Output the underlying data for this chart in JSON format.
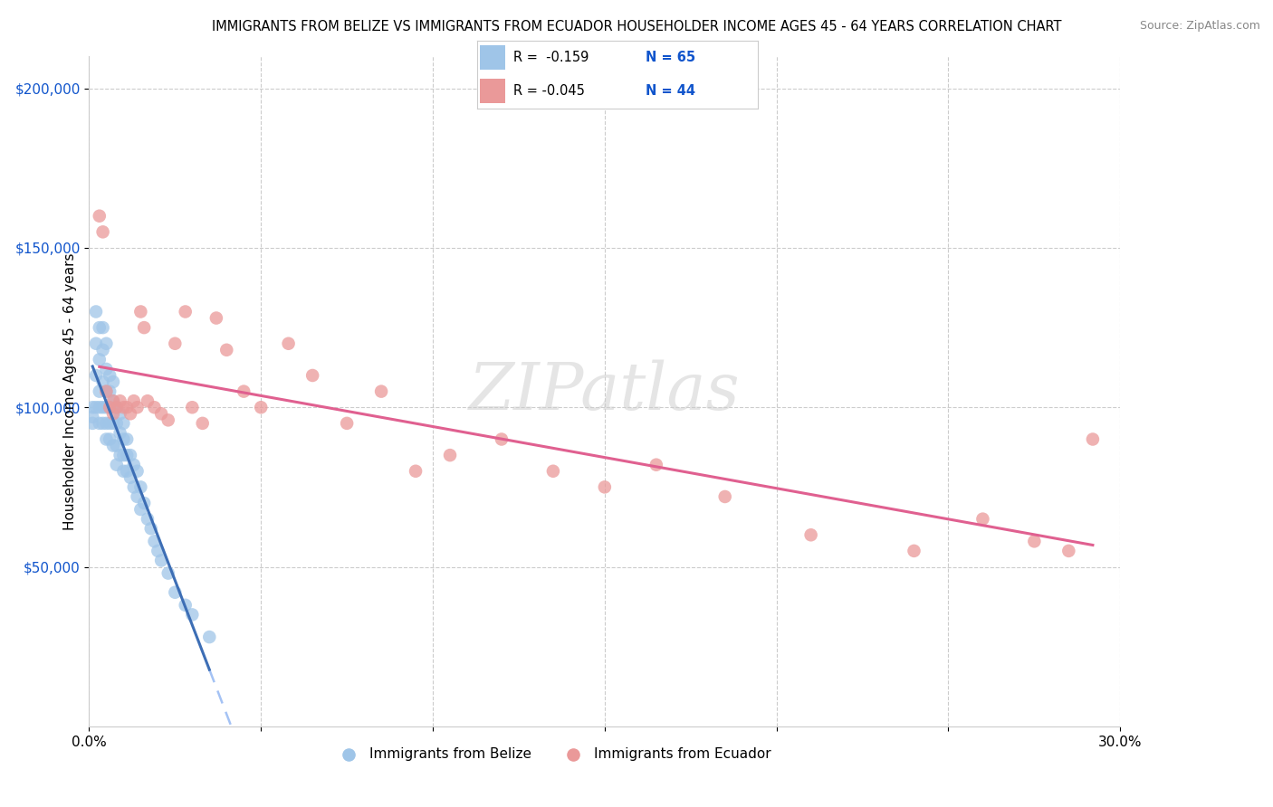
{
  "title": "IMMIGRANTS FROM BELIZE VS IMMIGRANTS FROM ECUADOR HOUSEHOLDER INCOME AGES 45 - 64 YEARS CORRELATION CHART",
  "source": "Source: ZipAtlas.com",
  "ylabel": "Householder Income Ages 45 - 64 years",
  "xlim": [
    0.0,
    0.3
  ],
  "ylim": [
    0,
    210000
  ],
  "xticks": [
    0.0,
    0.05,
    0.1,
    0.15,
    0.2,
    0.25,
    0.3
  ],
  "xtick_labels": [
    "0.0%",
    "",
    "",
    "",
    "",
    "",
    "30.0%"
  ],
  "ytick_values": [
    50000,
    100000,
    150000,
    200000
  ],
  "belize_color": "#9fc5e8",
  "ecuador_color": "#ea9999",
  "trendline_belize_color": "#3d6eb5",
  "trendline_ecuador_color": "#e06090",
  "dashed_color": "#a4c2f4",
  "belize_R": -0.159,
  "belize_N": 65,
  "ecuador_R": -0.045,
  "ecuador_N": 44,
  "legend_label_belize": "Immigrants from Belize",
  "legend_label_ecuador": "Immigrants from Ecuador",
  "watermark": "ZIPatlas",
  "belize_x": [
    0.001,
    0.001,
    0.001,
    0.002,
    0.002,
    0.002,
    0.002,
    0.003,
    0.003,
    0.003,
    0.003,
    0.003,
    0.004,
    0.004,
    0.004,
    0.004,
    0.004,
    0.005,
    0.005,
    0.005,
    0.005,
    0.005,
    0.005,
    0.006,
    0.006,
    0.006,
    0.006,
    0.006,
    0.007,
    0.007,
    0.007,
    0.007,
    0.008,
    0.008,
    0.008,
    0.008,
    0.009,
    0.009,
    0.009,
    0.01,
    0.01,
    0.01,
    0.01,
    0.011,
    0.011,
    0.011,
    0.012,
    0.012,
    0.013,
    0.013,
    0.014,
    0.014,
    0.015,
    0.015,
    0.016,
    0.017,
    0.018,
    0.019,
    0.02,
    0.021,
    0.023,
    0.025,
    0.028,
    0.03,
    0.035
  ],
  "belize_y": [
    100000,
    97000,
    95000,
    130000,
    120000,
    110000,
    100000,
    125000,
    115000,
    105000,
    100000,
    95000,
    125000,
    118000,
    108000,
    100000,
    95000,
    120000,
    112000,
    105000,
    100000,
    95000,
    90000,
    110000,
    105000,
    100000,
    95000,
    90000,
    108000,
    102000,
    95000,
    88000,
    100000,
    95000,
    88000,
    82000,
    98000,
    92000,
    85000,
    95000,
    90000,
    85000,
    80000,
    90000,
    85000,
    80000,
    85000,
    78000,
    82000,
    75000,
    80000,
    72000,
    75000,
    68000,
    70000,
    65000,
    62000,
    58000,
    55000,
    52000,
    48000,
    42000,
    38000,
    35000,
    28000
  ],
  "ecuador_x": [
    0.003,
    0.004,
    0.005,
    0.006,
    0.007,
    0.007,
    0.008,
    0.009,
    0.01,
    0.011,
    0.012,
    0.013,
    0.014,
    0.015,
    0.016,
    0.017,
    0.019,
    0.021,
    0.023,
    0.025,
    0.028,
    0.03,
    0.033,
    0.037,
    0.04,
    0.045,
    0.05,
    0.058,
    0.065,
    0.075,
    0.085,
    0.095,
    0.105,
    0.12,
    0.135,
    0.15,
    0.165,
    0.185,
    0.21,
    0.24,
    0.26,
    0.275,
    0.285,
    0.292
  ],
  "ecuador_y": [
    160000,
    155000,
    105000,
    100000,
    102000,
    98000,
    100000,
    102000,
    100000,
    100000,
    98000,
    102000,
    100000,
    130000,
    125000,
    102000,
    100000,
    98000,
    96000,
    120000,
    130000,
    100000,
    95000,
    128000,
    118000,
    105000,
    100000,
    120000,
    110000,
    95000,
    105000,
    80000,
    85000,
    90000,
    80000,
    75000,
    82000,
    72000,
    60000,
    55000,
    65000,
    58000,
    55000,
    90000
  ]
}
